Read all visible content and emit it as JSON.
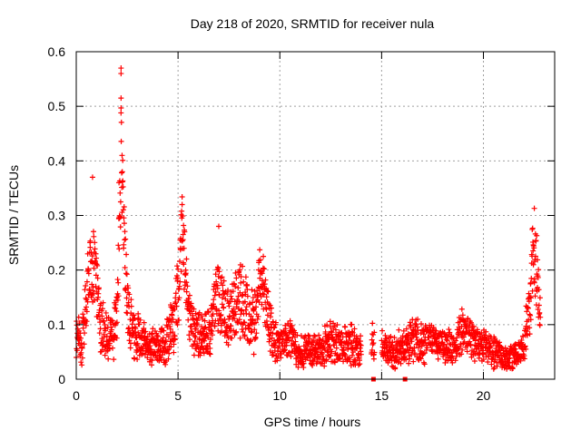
{
  "chart_data": {
    "type": "scatter",
    "title": "Day 218 of 2020, SRMTID for receiver nula",
    "xlabel": "GPS time / hours",
    "ylabel": "SRMTID / TECUs",
    "xlim": [
      0,
      23.5
    ],
    "ylim": [
      0,
      0.6
    ],
    "x_ticks": [
      "0",
      "5",
      "10",
      "15",
      "20"
    ],
    "x_tick_values": [
      0,
      5,
      10,
      15,
      20
    ],
    "y_ticks": [
      "0",
      "0.1",
      "0.2",
      "0.3",
      "0.4",
      "0.5",
      "0.6"
    ],
    "y_tick_values": [
      0,
      0.1,
      0.2,
      0.3,
      0.4,
      0.5,
      0.6
    ],
    "grid": true,
    "marker": "+",
    "color": "#ff0000",
    "series": [
      {
        "name": "SRMTID",
        "approx_profile": {
          "x": [
            0,
            0.3,
            0.6,
            0.9,
            1.2,
            1.6,
            2.0,
            2.2,
            2.3,
            2.5,
            2.8,
            3.2,
            3.6,
            4.0,
            4.4,
            4.8,
            5.0,
            5.2,
            5.5,
            5.8,
            6.2,
            6.6,
            7.0,
            7.3,
            7.6,
            8.0,
            8.4,
            8.8,
            9.0,
            9.3,
            9.6,
            10.0,
            10.5,
            11.0,
            11.5,
            12.0,
            12.5,
            13.0,
            13.5,
            14.0,
            14.5,
            15.0,
            15.5,
            16.0,
            16.5,
            17.0,
            17.5,
            18.0,
            18.5,
            19.0,
            19.5,
            20.0,
            20.5,
            21.0,
            21.5,
            22.0,
            22.3,
            22.5,
            22.8
          ],
          "y": [
            0.08,
            0.07,
            0.2,
            0.22,
            0.1,
            0.07,
            0.1,
            0.42,
            0.3,
            0.14,
            0.08,
            0.07,
            0.06,
            0.06,
            0.07,
            0.1,
            0.15,
            0.28,
            0.12,
            0.09,
            0.08,
            0.1,
            0.15,
            0.12,
            0.12,
            0.15,
            0.12,
            0.1,
            0.2,
            0.15,
            0.08,
            0.06,
            0.08,
            0.05,
            0.06,
            0.05,
            0.07,
            0.06,
            0.06,
            0.05,
            0.07,
            0.06,
            0.05,
            0.06,
            0.07,
            0.07,
            0.07,
            0.06,
            0.06,
            0.09,
            0.07,
            0.06,
            0.05,
            0.04,
            0.04,
            0.06,
            0.15,
            0.25,
            0.12
          ]
        },
        "spread": [
          0.04,
          0.04,
          0.08,
          0.08,
          0.05,
          0.04,
          0.05,
          0.1,
          0.08,
          0.06,
          0.04,
          0.04,
          0.03,
          0.03,
          0.04,
          0.05,
          0.07,
          0.08,
          0.05,
          0.05,
          0.04,
          0.05,
          0.07,
          0.06,
          0.05,
          0.07,
          0.06,
          0.05,
          0.06,
          0.06,
          0.04,
          0.03,
          0.04,
          0.03,
          0.03,
          0.03,
          0.04,
          0.03,
          0.04,
          0.03,
          0.03,
          0.03,
          0.03,
          0.03,
          0.04,
          0.04,
          0.03,
          0.03,
          0.03,
          0.04,
          0.04,
          0.03,
          0.03,
          0.02,
          0.02,
          0.03,
          0.06,
          0.08,
          0.05
        ],
        "notable_points": [
          [
            2.2,
            0.57
          ],
          [
            2.2,
            0.56
          ],
          [
            2.2,
            0.515
          ],
          [
            2.2,
            0.497
          ],
          [
            2.25,
            0.41
          ],
          [
            2.1,
            0.36
          ],
          [
            0.8,
            0.37
          ],
          [
            22.5,
            0.313
          ],
          [
            5.2,
            0.32
          ],
          [
            7.0,
            0.28
          ]
        ],
        "gaps": [
          [
            14.0,
            14.5
          ],
          [
            14.65,
            15.0
          ]
        ],
        "baseline_markers": [
          [
            14.6,
            0.0
          ],
          [
            16.15,
            0.0
          ]
        ]
      }
    ]
  }
}
